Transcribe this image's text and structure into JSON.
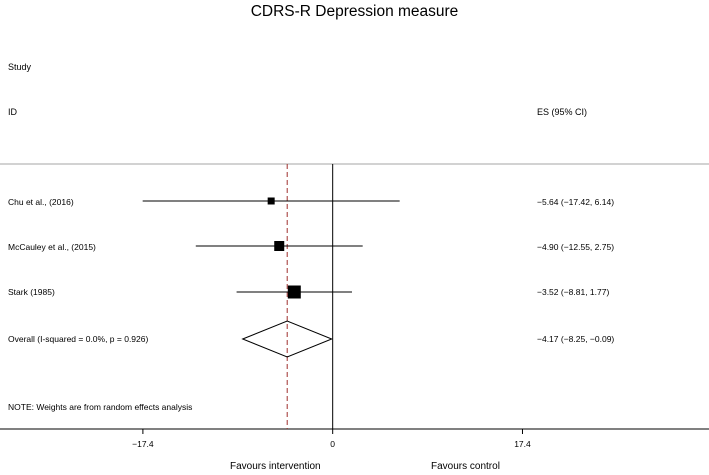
{
  "chart_data": {
    "type": "forest",
    "title": "CDRS-R Depression measure",
    "column_headers": {
      "study": "Study",
      "id": "ID",
      "effect": "ES (95% CI)"
    },
    "studies": [
      {
        "label": "Chu et al., (2016)",
        "es": -5.64,
        "lower": -17.42,
        "upper": 6.14,
        "ci_text": "−5.64 (−17.42, 6.14)",
        "weight": 1
      },
      {
        "label": "McCauley et al., (2015)",
        "es": -4.9,
        "lower": -12.55,
        "upper": 2.75,
        "ci_text": "−4.90 (−12.55, 2.75)",
        "weight": 2
      },
      {
        "label": "Stark (1985)",
        "es": -3.52,
        "lower": -8.81,
        "upper": 1.77,
        "ci_text": "−3.52 (−8.81, 1.77)",
        "weight": 3
      }
    ],
    "overall": {
      "label": "Overall  (I-squared = 0.0%, p = 0.926)",
      "es": -4.17,
      "lower": -8.25,
      "upper": -0.09,
      "ci_text": "−4.17 (−8.25, −0.09)"
    },
    "x_ticks": [
      {
        "value": -17.4,
        "label": "−17.4"
      },
      {
        "value": 0,
        "label": "0"
      },
      {
        "value": 17.4,
        "label": "17.4"
      }
    ],
    "xlim": [
      -30.5,
      34.5
    ],
    "x_left_label": "Favours intervention",
    "x_right_label": "Favours control",
    "note": "NOTE: Weights are from random effects analysis",
    "colors": {
      "line": "#000000",
      "overall_line": "#a0302e",
      "separator": "#888888"
    }
  }
}
